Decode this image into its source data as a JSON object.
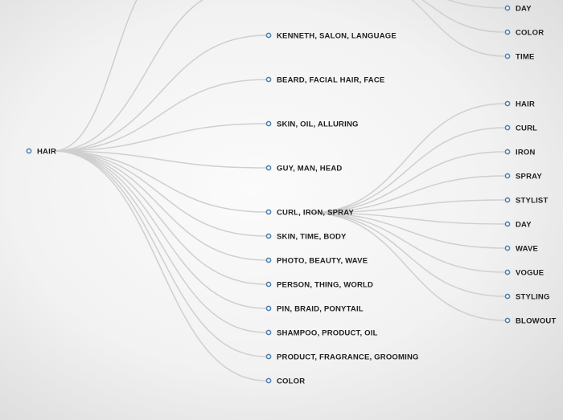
{
  "root": {
    "label": "HAIR"
  },
  "branches": [
    {
      "label": "KENNETH, SALON, LANGUAGE"
    },
    {
      "label": "BEARD, FACIAL HAIR, FACE"
    },
    {
      "label": "SKIN, OIL, ALLURING"
    },
    {
      "label": "GUY, MAN, HEAD"
    },
    {
      "label": "CURL, IRON, SPRAY"
    },
    {
      "label": "SKIN, TIME, BODY"
    },
    {
      "label": "PHOTO, BEAUTY, WAVE"
    },
    {
      "label": "PERSON, THING, WORLD"
    },
    {
      "label": "PIN, BRAID, PONYTAIL"
    },
    {
      "label": "SHAMPOO, PRODUCT, OIL"
    },
    {
      "label": "PRODUCT, FRAGRANCE, GROOMING"
    },
    {
      "label": "COLOR"
    }
  ],
  "top_leaves": [
    {
      "label": "DAY"
    },
    {
      "label": "COLOR"
    },
    {
      "label": "TIME"
    }
  ],
  "curl_iron_spray_leaves": [
    {
      "label": "HAIR"
    },
    {
      "label": "CURL"
    },
    {
      "label": "IRON"
    },
    {
      "label": "SPRAY"
    },
    {
      "label": "STYLIST"
    },
    {
      "label": "DAY"
    },
    {
      "label": "WAVE"
    },
    {
      "label": "VOGUE"
    },
    {
      "label": "STYLING"
    },
    {
      "label": "BLOWOUT"
    }
  ],
  "colors": {
    "node_stroke": "#4f81b0",
    "link": "#cfcfcf",
    "text": "#1f1f1f"
  }
}
